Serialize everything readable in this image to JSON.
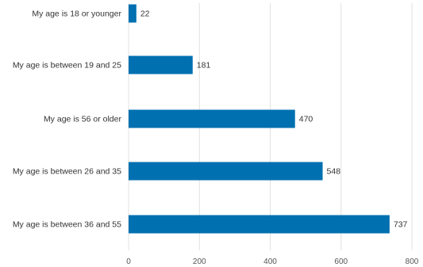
{
  "chart_data": {
    "type": "bar",
    "orientation": "horizontal",
    "categories": [
      "My age is 18 or younger",
      "My age is between 19 and 25",
      "My age is 56 or older",
      "My age is between 26 and 35",
      "My age is between 36 and 55"
    ],
    "values": [
      22,
      181,
      470,
      548,
      737
    ],
    "xlim": [
      0,
      800
    ],
    "xticks": [
      0,
      200,
      400,
      600,
      800
    ],
    "grid": true,
    "bar_color": "#0070b0",
    "data_labels": true,
    "legend": "none"
  }
}
